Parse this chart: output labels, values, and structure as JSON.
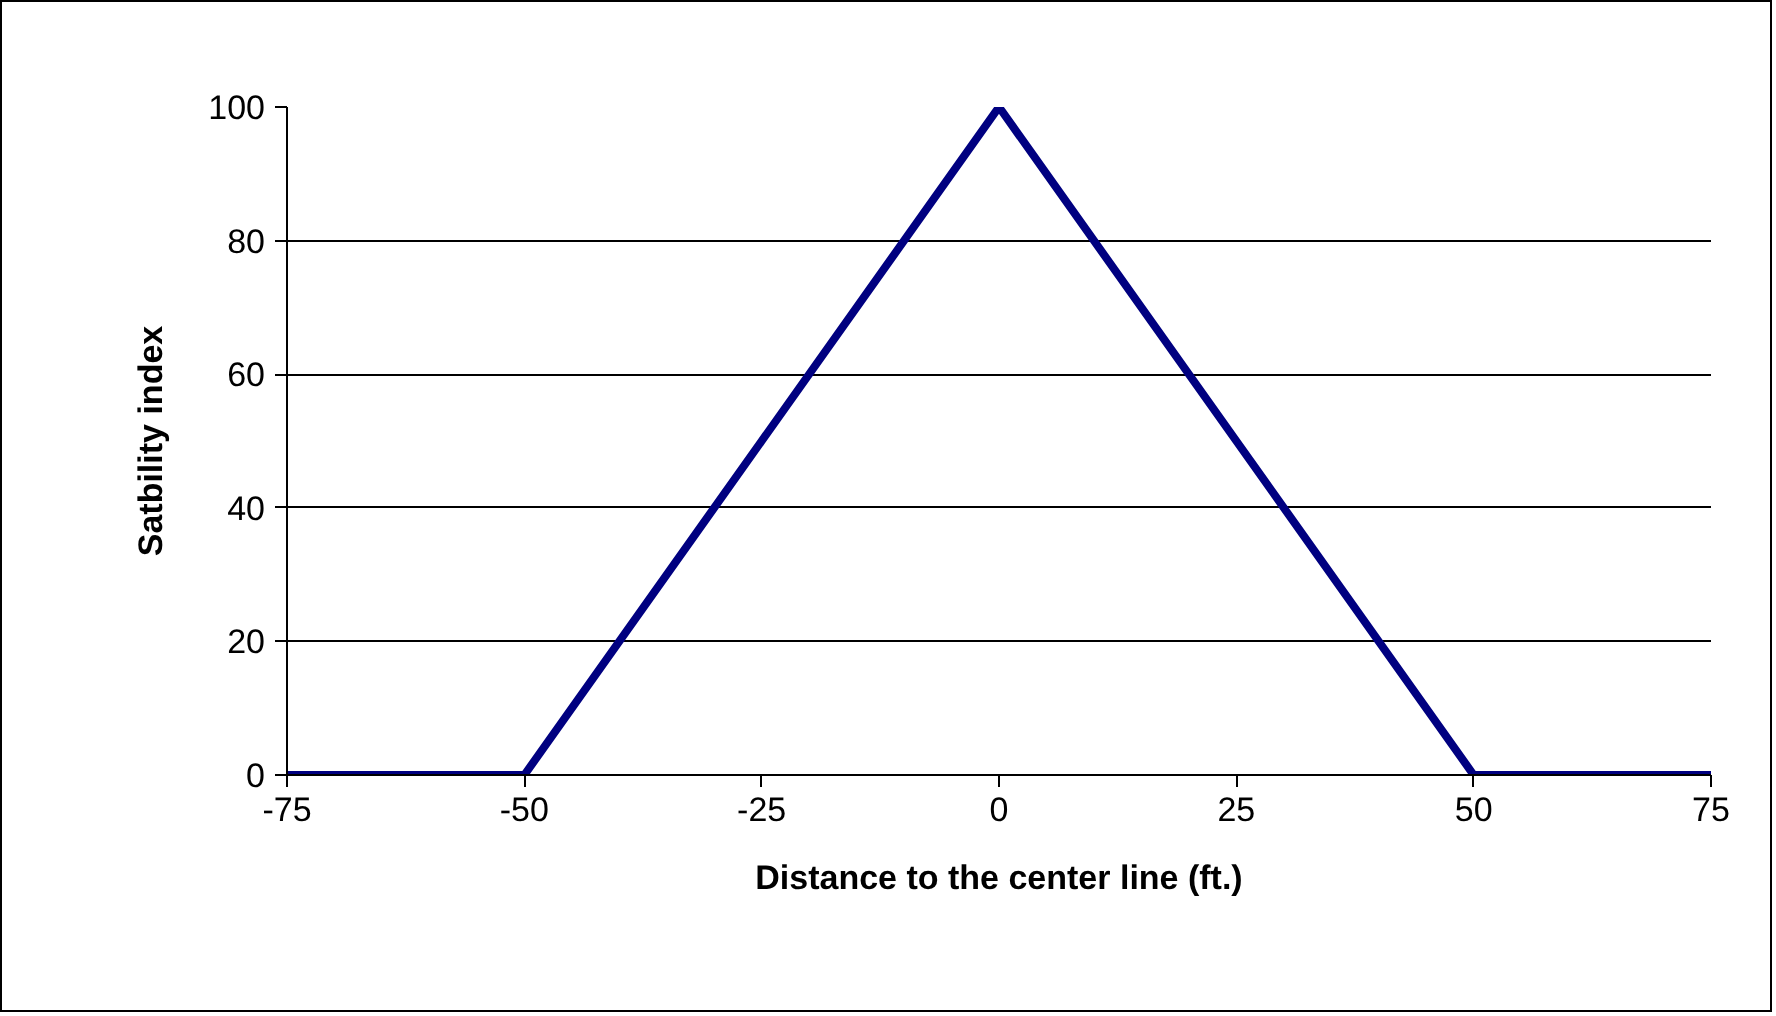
{
  "chart_data": {
    "type": "line",
    "xlabel": "Distance to the center line (ft.)",
    "ylabel": "Satbility index",
    "x": [
      -75,
      -50,
      -25,
      0,
      25,
      50,
      75
    ],
    "series": [
      {
        "color": "#000080",
        "values": [
          0,
          0,
          50,
          100,
          50,
          0,
          0
        ]
      }
    ],
    "xlim": [
      -75,
      75
    ],
    "ylim": [
      0,
      100
    ],
    "xticks": [
      -75,
      -50,
      -25,
      0,
      25,
      50,
      75
    ],
    "yticks": [
      0,
      20,
      40,
      60,
      80,
      100
    ],
    "grid": "y",
    "marker": "none",
    "line_style": "solid"
  }
}
